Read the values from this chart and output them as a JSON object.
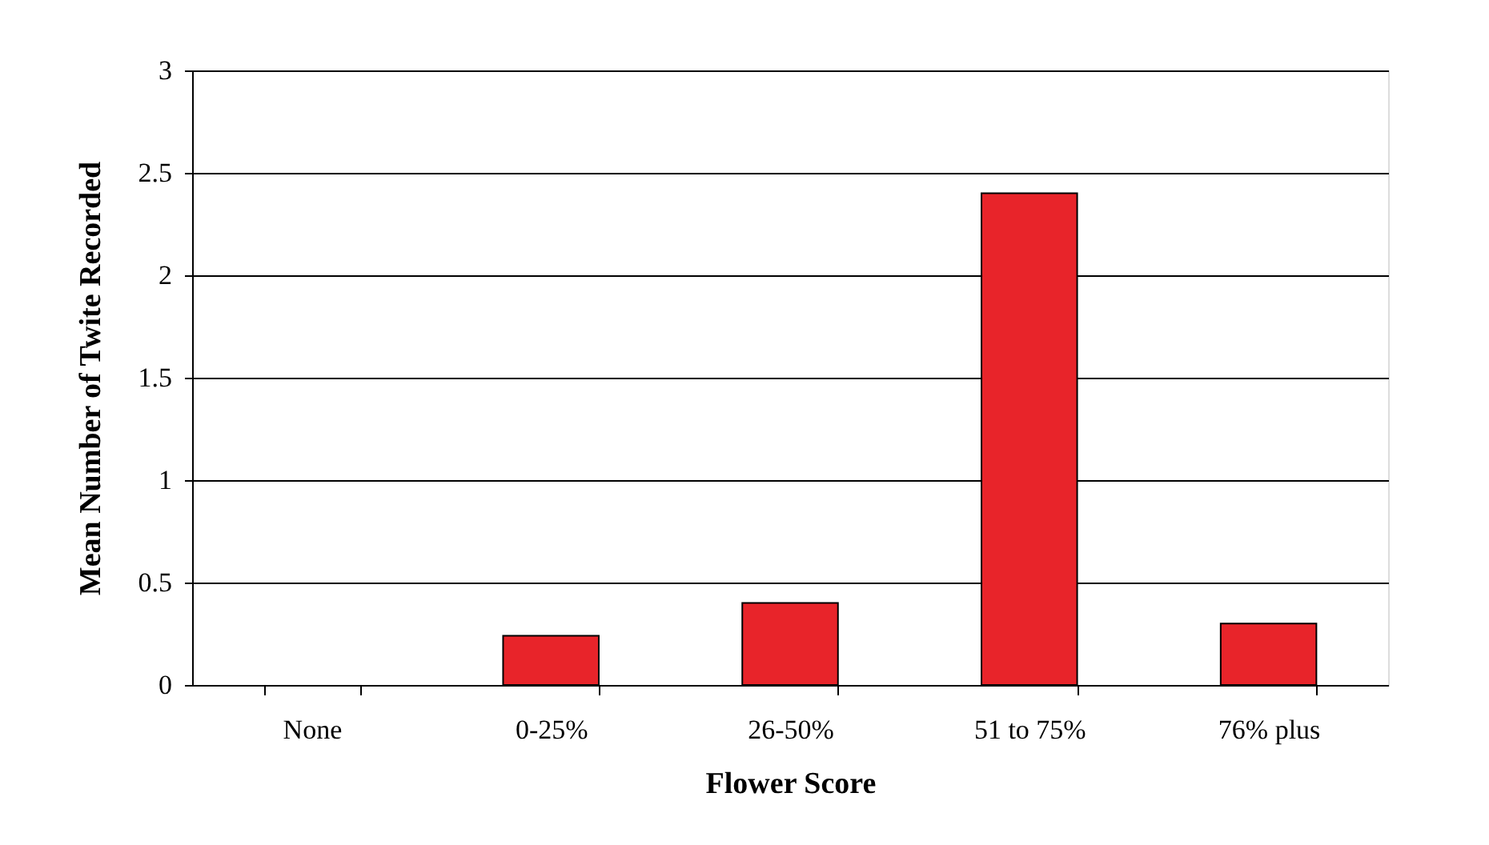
{
  "chart_data": {
    "type": "bar",
    "xlabel": "Flower Score",
    "ylabel": "Mean Number of Twite Recorded",
    "categories": [
      "None",
      "0-25%",
      "26-50%",
      "51 to 75%",
      "76% plus"
    ],
    "values": [
      0,
      0.24,
      0.4,
      2.4,
      0.3
    ],
    "color": "#e8242a",
    "ylim": [
      0,
      3
    ],
    "yticks": [
      0,
      0.5,
      1,
      1.5,
      2,
      2.5,
      3
    ],
    "grid": "y"
  }
}
